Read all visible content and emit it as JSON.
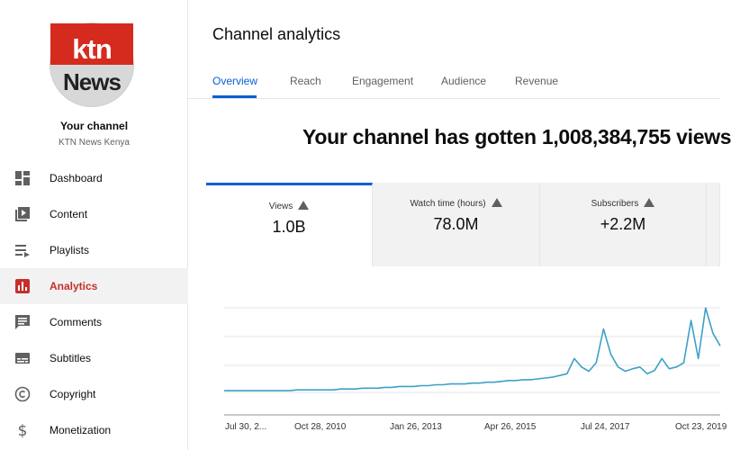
{
  "channel": {
    "logo_line1": "ktn",
    "logo_line2": "News",
    "title": "Your channel",
    "subtitle": "KTN News Kenya"
  },
  "sidebar": {
    "items": [
      {
        "label": "Dashboard",
        "icon": "dashboard-icon"
      },
      {
        "label": "Content",
        "icon": "content-icon"
      },
      {
        "label": "Playlists",
        "icon": "playlists-icon"
      },
      {
        "label": "Analytics",
        "icon": "analytics-icon",
        "active": true
      },
      {
        "label": "Comments",
        "icon": "comments-icon"
      },
      {
        "label": "Subtitles",
        "icon": "subtitles-icon"
      },
      {
        "label": "Copyright",
        "icon": "copyright-icon"
      },
      {
        "label": "Monetization",
        "icon": "monetization-icon"
      }
    ]
  },
  "header": {
    "title": "Channel analytics"
  },
  "tabs": [
    "Overview",
    "Reach",
    "Engagement",
    "Audience",
    "Revenue"
  ],
  "headline": "Your channel has gotten 1,008,384,755 views",
  "metrics": [
    {
      "label": "Views",
      "value": "1.0B"
    },
    {
      "label": "Watch time (hours)",
      "value": "78.0M"
    },
    {
      "label": "Subscribers",
      "value": "+2.2M"
    }
  ],
  "colors": {
    "accent": "#065fd4",
    "active_nav": "#c4302b",
    "line": "#3ea0c7",
    "brand_red": "#d52b1e"
  },
  "chart_data": {
    "type": "line",
    "x_ticks": [
      "Jul 30, 2...",
      "Oct 28, 2010",
      "Jan 26, 2013",
      "Apr 26, 2015",
      "Jul 24, 2017",
      "Oct 23, 2019"
    ],
    "series": [
      {
        "values": [
          0.02,
          0.02,
          0.02,
          0.02,
          0.02,
          0.02,
          0.02,
          0.02,
          0.02,
          0.02,
          0.03,
          0.03,
          0.03,
          0.03,
          0.03,
          0.03,
          0.04,
          0.04,
          0.04,
          0.05,
          0.05,
          0.05,
          0.06,
          0.06,
          0.07,
          0.07,
          0.07,
          0.08,
          0.08,
          0.09,
          0.09,
          0.1,
          0.1,
          0.1,
          0.11,
          0.11,
          0.12,
          0.12,
          0.13,
          0.14,
          0.14,
          0.15,
          0.15,
          0.16,
          0.17,
          0.18,
          0.2,
          0.22,
          0.4,
          0.3,
          0.25,
          0.35,
          0.75,
          0.45,
          0.3,
          0.25,
          0.28,
          0.3,
          0.22,
          0.26,
          0.4,
          0.28,
          0.3,
          0.35,
          0.85,
          0.4,
          1.0,
          0.7,
          0.55
        ]
      }
    ],
    "grid": true
  }
}
